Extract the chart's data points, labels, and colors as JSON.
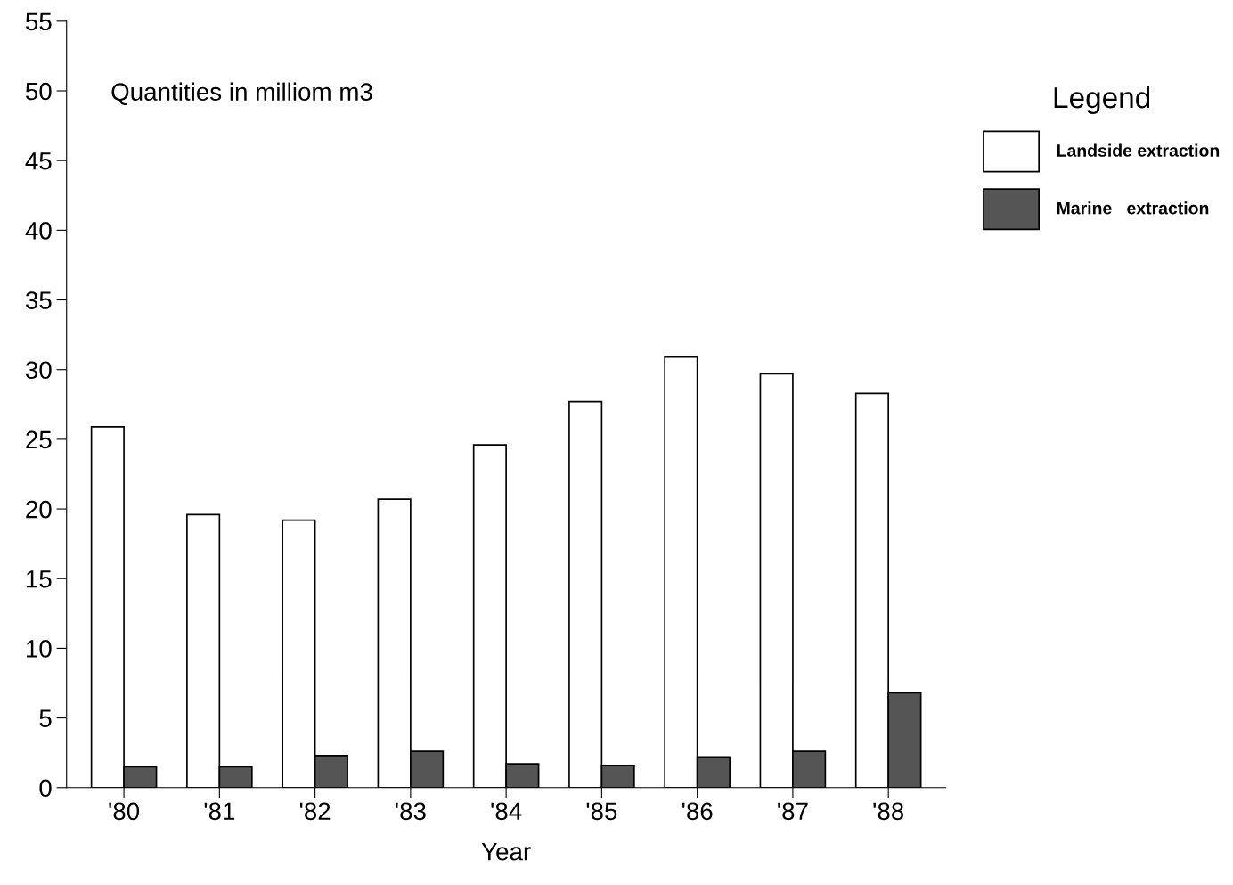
{
  "chart_data": {
    "type": "bar",
    "xlabel": "Year",
    "legend_title": "Legend",
    "legend": "top right",
    "annotations": [
      "Quantities in milliom m3"
    ],
    "categories": [
      "'80",
      "'81",
      "'82",
      "'83",
      "'84",
      "'85",
      "'86",
      "'87",
      "'88"
    ],
    "series": [
      {
        "name": "Landside extraction",
        "color": "#ffffff",
        "values": [
          25.9,
          19.6,
          19.2,
          20.7,
          24.6,
          27.7,
          30.9,
          29.7,
          28.3
        ]
      },
      {
        "name": "Marine   extraction",
        "color": "#555555",
        "values": [
          1.5,
          1.5,
          2.3,
          2.6,
          1.7,
          1.6,
          2.2,
          2.6,
          6.8
        ]
      }
    ],
    "ylim": [
      0,
      55
    ],
    "yticks": [
      0,
      5,
      10,
      15,
      20,
      25,
      30,
      35,
      40,
      45,
      50,
      55
    ],
    "grid": false
  }
}
